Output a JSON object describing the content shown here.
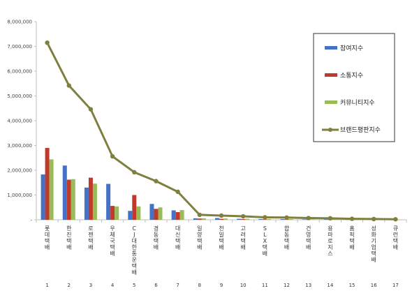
{
  "chart_data": {
    "type": "bar",
    "title": "",
    "xlabel": "",
    "ylabel": "",
    "ylim": [
      0,
      8000000
    ],
    "yticks": [
      "-",
      "1,000,000",
      "2,000,000",
      "3,000,000",
      "4,000,000",
      "5,000,000",
      "6,000,000",
      "7,000,000",
      "8,000,000"
    ],
    "grid": false,
    "legend_position": "right",
    "categories": [
      "롯데택배",
      "한진택배",
      "로젠택배",
      "우체국택배",
      "CJ대한통운택배",
      "경동택배",
      "대신택배",
      "일양택배",
      "천일택배",
      "고려택배",
      "SLX택배",
      "합동택배",
      "건영택배",
      "용마로지스",
      "홈픽택배",
      "성화기업택배",
      "큐런택배"
    ],
    "ranks": [
      "1",
      "2",
      "3",
      "4",
      "5",
      "6",
      "7",
      "8",
      "9",
      "10",
      "11",
      "12",
      "13",
      "14",
      "15",
      "16",
      "17"
    ],
    "series": [
      {
        "name": "참여지수",
        "kind": "bar",
        "color": "#4472c4",
        "values": [
          1830000,
          2190000,
          1300000,
          1450000,
          360000,
          640000,
          380000,
          60000,
          70000,
          40000,
          30000,
          30000,
          20000,
          20000,
          10000,
          10000,
          5000
        ]
      },
      {
        "name": "소통지수",
        "kind": "bar",
        "color": "#c0392b",
        "values": [
          2900000,
          1620000,
          1700000,
          560000,
          1000000,
          440000,
          310000,
          50000,
          40000,
          30000,
          20000,
          20000,
          15000,
          15000,
          10000,
          8000,
          4000
        ]
      },
      {
        "name": "커뮤니티지수",
        "kind": "bar",
        "color": "#9bbb59",
        "values": [
          2440000,
          1640000,
          1460000,
          540000,
          540000,
          500000,
          390000,
          60000,
          50000,
          40000,
          30000,
          30000,
          20000,
          20000,
          10000,
          8000,
          4000
        ]
      },
      {
        "name": "브랜드평판지수",
        "kind": "line",
        "color": "#7f7f3f",
        "values": [
          7150000,
          5420000,
          4460000,
          2560000,
          1920000,
          1560000,
          1130000,
          200000,
          170000,
          140000,
          100000,
          90000,
          70000,
          60000,
          40000,
          30000,
          20000
        ]
      }
    ]
  }
}
